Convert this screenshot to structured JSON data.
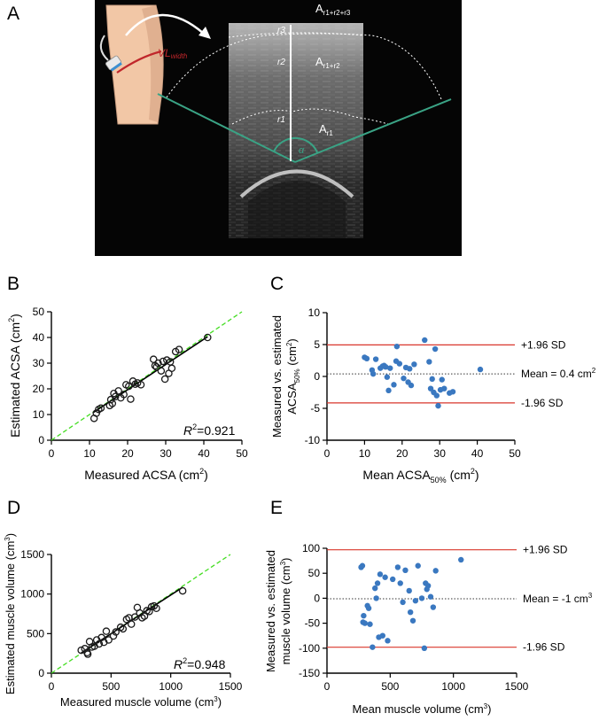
{
  "panel_labels": [
    "A",
    "B",
    "C",
    "D",
    "E"
  ],
  "ultrasound": {
    "labels": {
      "a_total": "A",
      "a_total_sub": "r1+r2+r3",
      "a_r1r2": "A",
      "a_r1r2_sub": "r1+r2",
      "a_r1": "A",
      "a_r1_sub": "r1",
      "r3": "r3",
      "r2": "r2",
      "r1": "r1",
      "alpha": "α",
      "vl": "VL",
      "vl_sub": "width"
    },
    "colors": {
      "background": "#000000",
      "angle_lines": "#3aa385",
      "vl_line": "#c0262b",
      "skin": "#f2c7a6"
    }
  },
  "chart_data": [
    {
      "type": "scatter",
      "panel": "B",
      "xlabel": "Measured ACSA (cm",
      "xlabel_sup": "2",
      "xlabel_end": ")",
      "ylabel": "Estimated ACSA (cm",
      "ylabel_sup": "2",
      "ylabel_end": ")",
      "xlim": [
        0,
        50
      ],
      "ylim": [
        0,
        50
      ],
      "xticks": [
        "0",
        "10",
        "20",
        "30",
        "40",
        "50"
      ],
      "yticks": [
        "0",
        "10",
        "20",
        "30",
        "40",
        "50"
      ],
      "annotation": {
        "prefix": "R",
        "sup": "2",
        "value": "=0.921"
      },
      "identity_line": {
        "x": [
          0,
          50
        ],
        "y": [
          0,
          50
        ],
        "color": "#44dd22"
      },
      "fit_line": {
        "x": [
          11,
          41
        ],
        "y": [
          10.8,
          40.3
        ],
        "color": "#000000"
      },
      "points": {
        "x": [
          11.2,
          11.8,
          12.4,
          13.0,
          15.3,
          15.6,
          16.0,
          16.4,
          16.8,
          17.6,
          18.2,
          19.0,
          19.6,
          20.3,
          20.8,
          21.4,
          22.0,
          22.6,
          23.5,
          26.8,
          27.2,
          27.6,
          28.0,
          28.8,
          29.3,
          29.8,
          30.3,
          30.8,
          31.2,
          31.6,
          32.6,
          33.5,
          41.0
        ],
        "y": [
          8.5,
          10.5,
          12.0,
          12.5,
          13.5,
          15.8,
          14.3,
          18.2,
          17.0,
          19.2,
          16.5,
          17.8,
          21.6,
          21.0,
          16.0,
          23.0,
          21.8,
          22.3,
          21.6,
          31.5,
          29.0,
          28.5,
          30.0,
          27.0,
          30.7,
          23.8,
          31.2,
          26.0,
          30.5,
          28.0,
          34.5,
          35.3,
          40.0
        ]
      },
      "colors": {
        "points": "#1a1a1a"
      }
    },
    {
      "type": "scatter",
      "panel": "C",
      "xlabel": "Mean ACSA",
      "xlabel_sub": "50%",
      "xlabel_unit": " (cm",
      "xlabel_sup": "2",
      "xlabel_end": ")",
      "ylabel_line1": "Measured vs. estimated",
      "ylabel_line2": "ACSA",
      "ylabel_sub": "50%",
      "ylabel_unit": " (cm",
      "ylabel_sup": "2",
      "ylabel_end": ")",
      "xlim": [
        0,
        50
      ],
      "ylim": [
        -10,
        10
      ],
      "xticks": [
        "0",
        "10",
        "20",
        "30",
        "40",
        "50"
      ],
      "yticks": [
        "-10",
        "-5",
        "0",
        "5",
        "10"
      ],
      "upper_loa": {
        "value": 4.95,
        "label": "+1.96 SD"
      },
      "lower_loa": {
        "value": -4.15,
        "label": "-1.96 SD"
      },
      "mean": {
        "value": 0.4,
        "label": "Mean = 0.4 cm",
        "label_sup": "2"
      },
      "points": {
        "x": [
          10.0,
          10.6,
          12.0,
          12.3,
          13.0,
          14.2,
          14.8,
          15.2,
          15.6,
          16.0,
          16.4,
          16.8,
          17.8,
          18.4,
          18.6,
          19.3,
          20.4,
          21.0,
          21.6,
          22.0,
          22.4,
          23.2,
          26.0,
          27.2,
          27.6,
          28.0,
          28.4,
          28.8,
          29.2,
          29.6,
          30.2,
          30.6,
          31.2,
          32.6,
          33.5,
          40.8
        ],
        "y": [
          3.0,
          2.8,
          1.0,
          0.4,
          2.7,
          1.3,
          1.6,
          1.7,
          1.5,
          -0.1,
          -2.2,
          1.3,
          -1.3,
          2.4,
          4.7,
          2.0,
          -0.3,
          1.4,
          -0.9,
          1.2,
          -1.4,
          1.9,
          5.7,
          2.3,
          -1.9,
          -0.4,
          -2.5,
          4.3,
          -3.0,
          -4.6,
          -2.1,
          -0.5,
          -1.9,
          -2.6,
          -2.4,
          1.1
        ]
      },
      "colors": {
        "points": "#3a78c0",
        "loa": "#d9372c",
        "mean": "#333333"
      }
    },
    {
      "type": "scatter",
      "panel": "D",
      "xlabel": "Measured muscle volume (cm",
      "xlabel_sup": "3",
      "xlabel_end": ")",
      "ylabel": "Estimated muscle volume (cm",
      "ylabel_sup": "3",
      "ylabel_end": ")",
      "xlim": [
        0,
        1500
      ],
      "ylim": [
        0,
        1500
      ],
      "xticks": [
        "0",
        "500",
        "1000",
        "1500"
      ],
      "yticks": [
        "0",
        "500",
        "1000",
        "1500"
      ],
      "annotation": {
        "prefix": "R",
        "sup": "2",
        "value": "=0.948"
      },
      "identity_line": {
        "x": [
          0,
          1500
        ],
        "y": [
          0,
          1500
        ],
        "color": "#44dd22"
      },
      "fit_line": {
        "x": [
          250,
          1100
        ],
        "y": [
          255,
          1085
        ],
        "color": "#000000"
      },
      "points": {
        "x": [
          250,
          280,
          300,
          305,
          320,
          340,
          360,
          380,
          400,
          420,
          440,
          460,
          480,
          520,
          540,
          580,
          600,
          630,
          650,
          670,
          700,
          720,
          740,
          760,
          780,
          800,
          820,
          840,
          860,
          880,
          1100
        ],
        "y": [
          290,
          310,
          260,
          240,
          400,
          330,
          340,
          420,
          370,
          450,
          390,
          530,
          420,
          470,
          520,
          580,
          560,
          680,
          700,
          620,
          710,
          830,
          760,
          700,
          720,
          790,
          780,
          840,
          850,
          820,
          1040
        ]
      },
      "colors": {
        "points": "#1a1a1a"
      }
    },
    {
      "type": "scatter",
      "panel": "E",
      "xlabel": "Mean muscle volume (cm",
      "xlabel_sup": "3",
      "xlabel_end": ")",
      "ylabel_line1": "Measured vs. estimated",
      "ylabel_line2": "muscle volume (cm",
      "ylabel_sup": "3",
      "ylabel_end": ")",
      "xlim": [
        0,
        1500
      ],
      "ylim": [
        -150,
        100
      ],
      "xticks": [
        "0",
        "500",
        "1000",
        "1500"
      ],
      "yticks": [
        "-150",
        "-100",
        "-50",
        "0",
        "50",
        "100"
      ],
      "upper_loa": {
        "value": 97,
        "label": "+1.96 SD"
      },
      "lower_loa": {
        "value": -98,
        "label": "-1.96 SD"
      },
      "mean": {
        "value": -1,
        "label": "Mean = -1 cm",
        "label_sup": "3"
      },
      "points": {
        "x": [
          270,
          280,
          285,
          290,
          300,
          320,
          330,
          340,
          360,
          380,
          390,
          400,
          410,
          420,
          440,
          460,
          480,
          520,
          560,
          580,
          600,
          620,
          650,
          660,
          680,
          700,
          720,
          750,
          770,
          780,
          790,
          800,
          820,
          840,
          860,
          1060
        ],
        "y": [
          62,
          65,
          -48,
          -35,
          -50,
          -15,
          -20,
          -52,
          -98,
          20,
          0,
          30,
          -78,
          48,
          -75,
          42,
          -85,
          38,
          62,
          30,
          -8,
          56,
          15,
          -28,
          -45,
          -5,
          65,
          0,
          -100,
          30,
          18,
          25,
          3,
          -18,
          55,
          77
        ]
      },
      "colors": {
        "points": "#3a78c0",
        "loa": "#d9372c",
        "mean": "#333333"
      }
    }
  ]
}
